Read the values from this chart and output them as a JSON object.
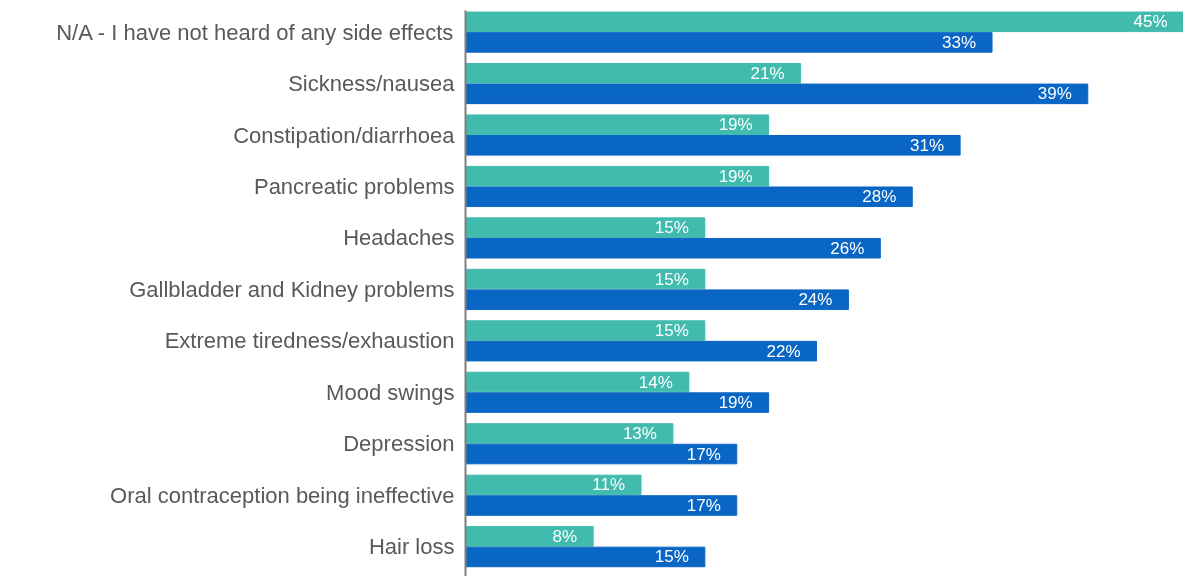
{
  "chart_data": {
    "type": "bar",
    "orientation": "horizontal",
    "categories": [
      "N/A - I have not heard of any side effects",
      "Sickness/nausea",
      "Constipation/diarrhoea",
      "Pancreatic problems",
      "Headaches",
      "Gallbladder and Kidney problems",
      "Extreme tiredness/exhaustion",
      "Mood swings",
      "Depression",
      "Oral contraception being ineffective",
      "Hair loss"
    ],
    "series": [
      {
        "color": "#40bbad",
        "values": [
          45,
          21,
          19,
          19,
          15,
          15,
          15,
          14,
          13,
          11,
          8
        ],
        "value_labels": [
          "45%",
          "21%",
          "19%",
          "19%",
          "15%",
          "15%",
          "15%",
          "14%",
          "13%",
          "11%",
          "8%"
        ]
      },
      {
        "color": "#0a66c4",
        "values": [
          33,
          39,
          31,
          28,
          26,
          24,
          22,
          19,
          17,
          17,
          15
        ],
        "value_labels": [
          "33%",
          "39%",
          "31%",
          "28%",
          "26%",
          "24%",
          "22%",
          "19%",
          "17%",
          "17%",
          "15%"
        ]
      }
    ]
  }
}
